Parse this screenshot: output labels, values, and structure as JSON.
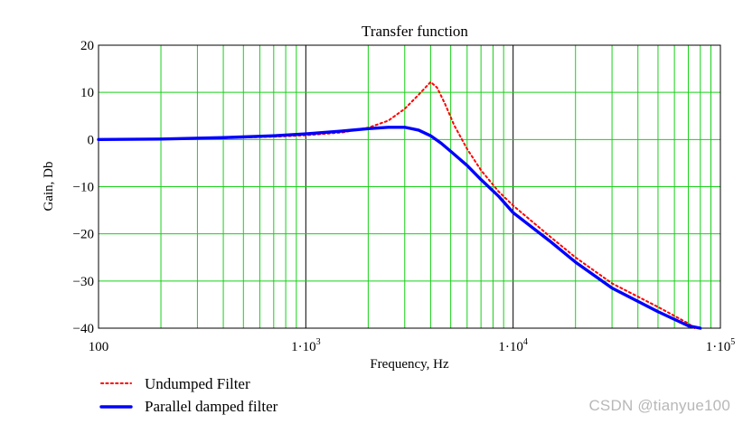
{
  "chart_data": {
    "type": "line",
    "title": "Transfer function",
    "xlabel": "Frequency, Hz",
    "ylabel": "Gain, Db",
    "x_scale": "log",
    "xlim": [
      100,
      100000
    ],
    "ylim": [
      -40,
      20
    ],
    "grid": true,
    "legend_position": "bottom-left",
    "x_tick_labels": [
      {
        "value": 100,
        "base": "100",
        "exp": ""
      },
      {
        "value": 1000,
        "base": "1·10",
        "exp": "3"
      },
      {
        "value": 10000,
        "base": "1·10",
        "exp": "4"
      },
      {
        "value": 100000,
        "base": "1·10",
        "exp": "5"
      }
    ],
    "y_ticks": [
      20,
      10,
      0,
      -10,
      -20,
      -30,
      -40
    ],
    "y_tick_labels": [
      "20",
      "10",
      "0",
      "−10",
      "−20",
      "−30",
      "−40"
    ],
    "series": [
      {
        "name": "Undumped Filter",
        "color": "#ff0000",
        "style": "dotted",
        "x": [
          100,
          200,
          400,
          700,
          1000,
          1500,
          2000,
          2500,
          3000,
          3500,
          4000,
          4300,
          4700,
          5200,
          6000,
          7000,
          8500,
          10000,
          15000,
          20000,
          30000,
          50000,
          70000,
          75000
        ],
        "y": [
          0,
          0.1,
          0.3,
          0.6,
          0.9,
          1.5,
          2.5,
          4,
          6.5,
          9.5,
          12.2,
          11,
          7.5,
          3,
          -2,
          -6.5,
          -11,
          -14,
          -20.5,
          -25,
          -30.5,
          -35.5,
          -39,
          -40
        ]
      },
      {
        "name": "Parallel damped filter",
        "color": "#0000ff",
        "style": "solid",
        "x": [
          100,
          200,
          400,
          700,
          1000,
          1500,
          2000,
          2500,
          3000,
          3500,
          4000,
          4500,
          5000,
          6000,
          7000,
          8500,
          10000,
          15000,
          20000,
          30000,
          50000,
          70000,
          80000
        ],
        "y": [
          0,
          0.1,
          0.4,
          0.8,
          1.2,
          1.8,
          2.3,
          2.6,
          2.6,
          2.0,
          0.8,
          -0.8,
          -2.5,
          -5.5,
          -8.5,
          -12,
          -15.5,
          -21.5,
          -26,
          -31.5,
          -36.5,
          -39.5,
          -40
        ]
      }
    ]
  },
  "watermark": "CSDN @tianyue100"
}
